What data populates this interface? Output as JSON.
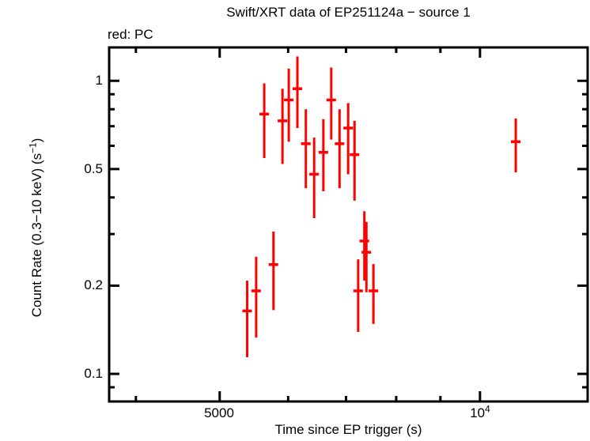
{
  "chart_data": {
    "type": "scatter",
    "subtype": "errorbar-light-curve",
    "title": "Swift/XRT data of EP251124a − source 1",
    "annotation": "red: PC",
    "xlabel": "Time since EP trigger (s)",
    "ylabel": "Count Rate (0.3−10 keV) (s−1)",
    "ylabel_parts": {
      "pre": "Count Rate (0.3−10 keV) (s",
      "sup": "−1",
      "post": ")"
    },
    "x_scale": "log",
    "y_scale": "log",
    "x_range_s": [
      3725,
      13320
    ],
    "y_range_cps": [
      0.0805,
      1.3
    ],
    "grid": "off",
    "frame_color": "#000000",
    "background_color": "#ffffff",
    "x_ticks_major": [
      {
        "value": 5000,
        "base": "5000",
        "sup": ""
      },
      {
        "value": 10000,
        "base": "10",
        "sup": "4"
      }
    ],
    "x_ticks_minor": [
      4000,
      6000,
      7000,
      8000,
      9000
    ],
    "y_ticks_major": [
      {
        "value": 1,
        "label": "1"
      },
      {
        "value": 0.5,
        "label": "0.5"
      },
      {
        "value": 0.2,
        "label": "0.2"
      },
      {
        "value": 0.1,
        "label": "0.1"
      }
    ],
    "y_ticks_minor": [
      0.9,
      0.8,
      0.7,
      0.6,
      0.4,
      0.3,
      0.09
    ],
    "series": [
      {
        "name": "PC",
        "color": "#ff0000",
        "marker": "cross-with-errorbars",
        "points": [
          {
            "t": 5630,
            "t_err": 72,
            "rate": 0.77,
            "rate_hi": 0.98,
            "rate_lo": 0.545
          },
          {
            "t": 5910,
            "t_err": 75,
            "rate": 0.73,
            "rate_hi": 0.94,
            "rate_lo": 0.52
          },
          {
            "t": 6010,
            "t_err": 76,
            "rate": 0.86,
            "rate_hi": 1.1,
            "rate_lo": 0.62
          },
          {
            "t": 6150,
            "t_err": 78,
            "rate": 0.94,
            "rate_hi": 1.21,
            "rate_lo": 0.69
          },
          {
            "t": 6290,
            "t_err": 80,
            "rate": 0.61,
            "rate_hi": 0.8,
            "rate_lo": 0.43
          },
          {
            "t": 6430,
            "t_err": 82,
            "rate": 0.48,
            "rate_hi": 0.64,
            "rate_lo": 0.34
          },
          {
            "t": 6590,
            "t_err": 84,
            "rate": 0.57,
            "rate_hi": 0.74,
            "rate_lo": 0.42
          },
          {
            "t": 6730,
            "t_err": 85,
            "rate": 0.86,
            "rate_hi": 1.11,
            "rate_lo": 0.63
          },
          {
            "t": 6880,
            "t_err": 87,
            "rate": 0.61,
            "rate_hi": 0.8,
            "rate_lo": 0.43
          },
          {
            "t": 7040,
            "t_err": 89,
            "rate": 0.69,
            "rate_hi": 0.84,
            "rate_lo": 0.48
          },
          {
            "t": 7160,
            "t_err": 91,
            "rate": 0.56,
            "rate_hi": 0.73,
            "rate_lo": 0.39
          },
          {
            "t": 5380,
            "t_err": 68,
            "rate": 0.164,
            "rate_hi": 0.208,
            "rate_lo": 0.114
          },
          {
            "t": 5510,
            "t_err": 70,
            "rate": 0.192,
            "rate_hi": 0.251,
            "rate_lo": 0.133
          },
          {
            "t": 5770,
            "t_err": 73,
            "rate": 0.236,
            "rate_hi": 0.306,
            "rate_lo": 0.165
          },
          {
            "t": 7230,
            "t_err": 92,
            "rate": 0.192,
            "rate_hi": 0.246,
            "rate_lo": 0.139
          },
          {
            "t": 7350,
            "t_err": 93,
            "rate": 0.284,
            "rate_hi": 0.359,
            "rate_lo": 0.208
          },
          {
            "t": 7390,
            "t_err": 94,
            "rate": 0.26,
            "rate_hi": 0.33,
            "rate_lo": 0.19
          },
          {
            "t": 7530,
            "t_err": 96,
            "rate": 0.192,
            "rate_hi": 0.237,
            "rate_lo": 0.148
          },
          {
            "t": 11000,
            "t_err": 140,
            "rate": 0.62,
            "rate_hi": 0.744,
            "rate_lo": 0.487
          }
        ]
      }
    ]
  }
}
